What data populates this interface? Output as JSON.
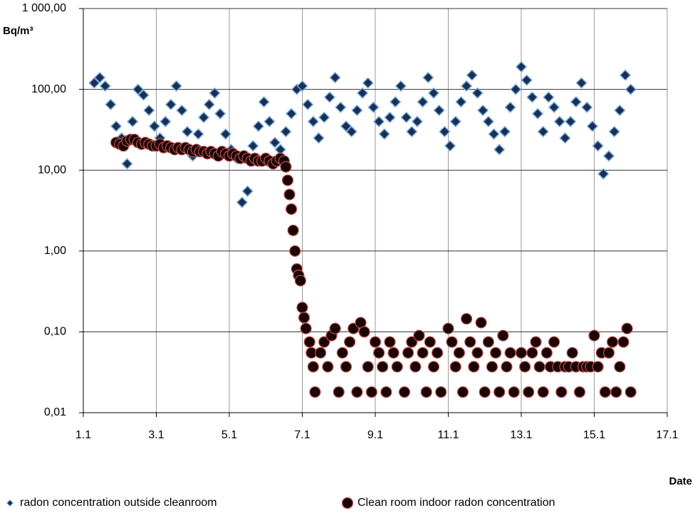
{
  "chart_data": {
    "type": "scatter",
    "y_label": "Bq/m³",
    "x_label": "Date",
    "log_y": true,
    "grid": true,
    "xlim": [
      1,
      17
    ],
    "xticks": [
      {
        "value": 1,
        "label": "1.1"
      },
      {
        "value": 3,
        "label": "3.1"
      },
      {
        "value": 5,
        "label": "5.1"
      },
      {
        "value": 7,
        "label": "7.1"
      },
      {
        "value": 9,
        "label": "9.1"
      },
      {
        "value": 11,
        "label": "11.1"
      },
      {
        "value": 13,
        "label": "13.1"
      },
      {
        "value": 15,
        "label": "15.1"
      },
      {
        "value": 17,
        "label": "17.1"
      }
    ],
    "ylim": [
      0.01,
      1000
    ],
    "yticks": [
      {
        "value": 0.01,
        "label": "0,01"
      },
      {
        "value": 0.1,
        "label": "0,10"
      },
      {
        "value": 1,
        "label": "1,00"
      },
      {
        "value": 10,
        "label": "10,00"
      },
      {
        "value": 100,
        "label": "100,00"
      },
      {
        "value": 1000,
        "label": "1 000,00"
      }
    ],
    "series": [
      {
        "name": "radon concentration outside cleanroom",
        "marker": "diamond",
        "color": "#1c2f52",
        "edge": "#6fa8dc",
        "x": [
          1.3,
          1.45,
          1.6,
          1.75,
          1.9,
          2.05,
          2.2,
          2.35,
          2.5,
          2.65,
          2.8,
          2.95,
          3.1,
          3.25,
          3.4,
          3.55,
          3.7,
          3.85,
          4,
          4.15,
          4.3,
          4.45,
          4.6,
          4.75,
          4.9,
          5.05,
          5.2,
          5.35,
          5.5,
          5.65,
          5.8,
          5.95,
          6.1,
          6.25,
          6.4,
          6.55,
          6.7,
          6.85,
          7,
          7.15,
          7.3,
          7.45,
          7.6,
          7.75,
          7.9,
          8.05,
          8.2,
          8.35,
          8.5,
          8.65,
          8.8,
          8.95,
          9.1,
          9.25,
          9.4,
          9.55,
          9.7,
          9.85,
          10,
          10.15,
          10.3,
          10.45,
          10.6,
          10.75,
          10.9,
          11.05,
          11.2,
          11.35,
          11.5,
          11.65,
          11.8,
          11.95,
          12.1,
          12.25,
          12.4,
          12.55,
          12.7,
          12.85,
          13,
          13.15,
          13.3,
          13.45,
          13.6,
          13.75,
          13.9,
          14.05,
          14.2,
          14.35,
          14.5,
          14.65,
          14.8,
          14.95,
          15.1,
          15.25,
          15.4,
          15.55,
          15.7,
          15.85,
          16
        ],
        "values": [
          120,
          140,
          110,
          65,
          35,
          25,
          12,
          40,
          100,
          85,
          55,
          35,
          25,
          40,
          65,
          110,
          55,
          30,
          15,
          28,
          45,
          65,
          90,
          50,
          28,
          18,
          14,
          4,
          5.5,
          20,
          35,
          70,
          40,
          22,
          18,
          30,
          50,
          100,
          110,
          65,
          40,
          25,
          45,
          80,
          140,
          60,
          35,
          30,
          55,
          90,
          120,
          60,
          40,
          28,
          45,
          70,
          110,
          45,
          30,
          40,
          70,
          140,
          90,
          55,
          30,
          20,
          40,
          70,
          110,
          150,
          90,
          55,
          40,
          28,
          18,
          30,
          60,
          100,
          190,
          130,
          80,
          50,
          30,
          80,
          60,
          40,
          25,
          40,
          70,
          120,
          60,
          35,
          20,
          9,
          15,
          30,
          55,
          150,
          100
        ]
      },
      {
        "name": "Clean room indoor radon concentration",
        "marker": "circle",
        "color": "#1a0505",
        "edge": "#c0504d",
        "x": [
          1.9,
          2,
          2.1,
          2.2,
          2.3,
          2.4,
          2.5,
          2.6,
          2.7,
          2.8,
          2.9,
          3,
          3.1,
          3.2,
          3.3,
          3.4,
          3.5,
          3.6,
          3.7,
          3.8,
          3.9,
          4,
          4.1,
          4.2,
          4.3,
          4.4,
          4.5,
          4.6,
          4.7,
          4.8,
          4.9,
          5,
          5.1,
          5.2,
          5.3,
          5.4,
          5.5,
          5.6,
          5.7,
          5.8,
          5.9,
          6,
          6.1,
          6.2,
          6.3,
          6.4,
          6.5,
          6.55,
          6.6,
          6.65,
          6.7,
          6.75,
          6.8,
          6.85,
          6.9,
          6.95,
          7,
          7.05,
          7.1,
          7.2,
          7.25,
          7.3,
          7.35,
          7.5,
          7.6,
          7.7,
          7.8,
          7.9,
          8,
          8.1,
          8.2,
          8.3,
          8.4,
          8.5,
          8.6,
          8.7,
          8.8,
          8.9,
          9,
          9.1,
          9.2,
          9.3,
          9.4,
          9.5,
          9.6,
          9.8,
          9.9,
          10,
          10.1,
          10.2,
          10.3,
          10.4,
          10.5,
          10.6,
          10.7,
          10.8,
          11,
          11.1,
          11.2,
          11.3,
          11.4,
          11.5,
          11.6,
          11.7,
          11.8,
          11.9,
          12,
          12.1,
          12.2,
          12.3,
          12.4,
          12.5,
          12.6,
          12.7,
          12.8,
          13,
          13.1,
          13.2,
          13.3,
          13.4,
          13.5,
          13.6,
          13.7,
          13.8,
          13.9,
          14,
          14.1,
          14.2,
          14.3,
          14.4,
          14.5,
          14.6,
          14.7,
          14.8,
          14.9,
          15,
          15.1,
          15.2,
          15.3,
          15.4,
          15.5,
          15.6,
          15.7,
          15.8,
          15.9,
          16
        ],
        "values": [
          22,
          21,
          20,
          23,
          24,
          24,
          22,
          21,
          22,
          21,
          20,
          20,
          21,
          19,
          20,
          19,
          18,
          19,
          18,
          19,
          18,
          17,
          18,
          17,
          17,
          16,
          17,
          16,
          15,
          17,
          16,
          15,
          16,
          15,
          14,
          15,
          14,
          13,
          14,
          13,
          13,
          14,
          13,
          12,
          13,
          14,
          13,
          11,
          7.5,
          5,
          3.3,
          1.8,
          1,
          0.6,
          0.5,
          0.43,
          0.2,
          0.15,
          0.11,
          0.075,
          0.055,
          0.037,
          0.018,
          0.055,
          0.075,
          0.037,
          0.09,
          0.11,
          0.018,
          0.055,
          0.037,
          0.075,
          0.11,
          0.018,
          0.13,
          0.1,
          0.037,
          0.018,
          0.075,
          0.055,
          0.037,
          0.018,
          0.075,
          0.055,
          0.037,
          0.018,
          0.055,
          0.075,
          0.037,
          0.09,
          0.055,
          0.018,
          0.075,
          0.037,
          0.055,
          0.018,
          0.11,
          0.075,
          0.037,
          0.055,
          0.018,
          0.145,
          0.075,
          0.037,
          0.055,
          0.13,
          0.018,
          0.075,
          0.037,
          0.055,
          0.018,
          0.09,
          0.037,
          0.055,
          0.018,
          0.055,
          0.037,
          0.018,
          0.055,
          0.075,
          0.037,
          0.018,
          0.055,
          0.037,
          0.075,
          0.037,
          0.018,
          0.037,
          0.037,
          0.055,
          0.037,
          0.018,
          0.037,
          0.037,
          0.037,
          0.09,
          0.037,
          0.055,
          0.018,
          0.055,
          0.075,
          0.018,
          0.037,
          0.075,
          0.11,
          0.018
        ]
      }
    ]
  }
}
